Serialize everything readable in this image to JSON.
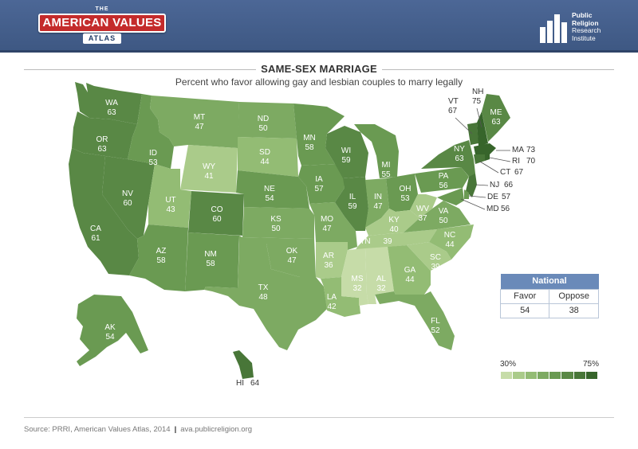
{
  "header": {
    "ava_logo": {
      "the": "THE",
      "name": "AMERICAN VALUES",
      "atlas": "ATLAS"
    },
    "prri_logo": {
      "line1": "Public",
      "line2": "Religion",
      "line3": "Research",
      "line4": "Institute"
    }
  },
  "title": "SAME-SEX MARRIAGE",
  "subtitle": "Percent who favor allowing gay and lesbian couples to marry legally",
  "national": {
    "heading": "National",
    "favor_label": "Favor",
    "oppose_label": "Oppose",
    "favor_value": "54",
    "oppose_value": "38"
  },
  "legend": {
    "min": "30%",
    "max": "75%",
    "colors": [
      "#c6dca8",
      "#aacb8a",
      "#93bc74",
      "#7daa62",
      "#6a9a52",
      "#598845",
      "#487638",
      "#37652b"
    ]
  },
  "footer": {
    "source": "Source: PRRI, American Values Atlas, 2014",
    "url": "ava.publicreligion.org"
  },
  "states": [
    {
      "abbr": "WA",
      "value": 63
    },
    {
      "abbr": "OR",
      "value": 63
    },
    {
      "abbr": "CA",
      "value": 61
    },
    {
      "abbr": "NV",
      "value": 60
    },
    {
      "abbr": "ID",
      "value": 53
    },
    {
      "abbr": "MT",
      "value": 47
    },
    {
      "abbr": "WY",
      "value": 41
    },
    {
      "abbr": "UT",
      "value": 43
    },
    {
      "abbr": "AZ",
      "value": 58
    },
    {
      "abbr": "CO",
      "value": 60
    },
    {
      "abbr": "NM",
      "value": 58
    },
    {
      "abbr": "ND",
      "value": 50
    },
    {
      "abbr": "SD",
      "value": 44
    },
    {
      "abbr": "NE",
      "value": 54
    },
    {
      "abbr": "KS",
      "value": 50
    },
    {
      "abbr": "OK",
      "value": 47
    },
    {
      "abbr": "TX",
      "value": 48
    },
    {
      "abbr": "MN",
      "value": 58
    },
    {
      "abbr": "IA",
      "value": 57
    },
    {
      "abbr": "MO",
      "value": 47
    },
    {
      "abbr": "AR",
      "value": 36
    },
    {
      "abbr": "LA",
      "value": 42
    },
    {
      "abbr": "WI",
      "value": 59
    },
    {
      "abbr": "IL",
      "value": 59
    },
    {
      "abbr": "MI",
      "value": 55
    },
    {
      "abbr": "IN",
      "value": 47
    },
    {
      "abbr": "OH",
      "value": 53
    },
    {
      "abbr": "KY",
      "value": 40
    },
    {
      "abbr": "TN",
      "value": 39
    },
    {
      "abbr": "MS",
      "value": 32
    },
    {
      "abbr": "AL",
      "value": 32
    },
    {
      "abbr": "GA",
      "value": 44
    },
    {
      "abbr": "FL",
      "value": 52
    },
    {
      "abbr": "SC",
      "value": 39
    },
    {
      "abbr": "NC",
      "value": 44
    },
    {
      "abbr": "VA",
      "value": 50
    },
    {
      "abbr": "WV",
      "value": 37
    },
    {
      "abbr": "PA",
      "value": 56
    },
    {
      "abbr": "NY",
      "value": 63
    },
    {
      "abbr": "VT",
      "value": 67
    },
    {
      "abbr": "NH",
      "value": 75
    },
    {
      "abbr": "ME",
      "value": 63
    },
    {
      "abbr": "MA",
      "value": 73
    },
    {
      "abbr": "RI",
      "value": 70
    },
    {
      "abbr": "CT",
      "value": 67
    },
    {
      "abbr": "NJ",
      "value": 66
    },
    {
      "abbr": "DE",
      "value": 57
    },
    {
      "abbr": "MD",
      "value": 56
    },
    {
      "abbr": "AK",
      "value": 54
    },
    {
      "abbr": "HI",
      "value": 64
    }
  ]
}
